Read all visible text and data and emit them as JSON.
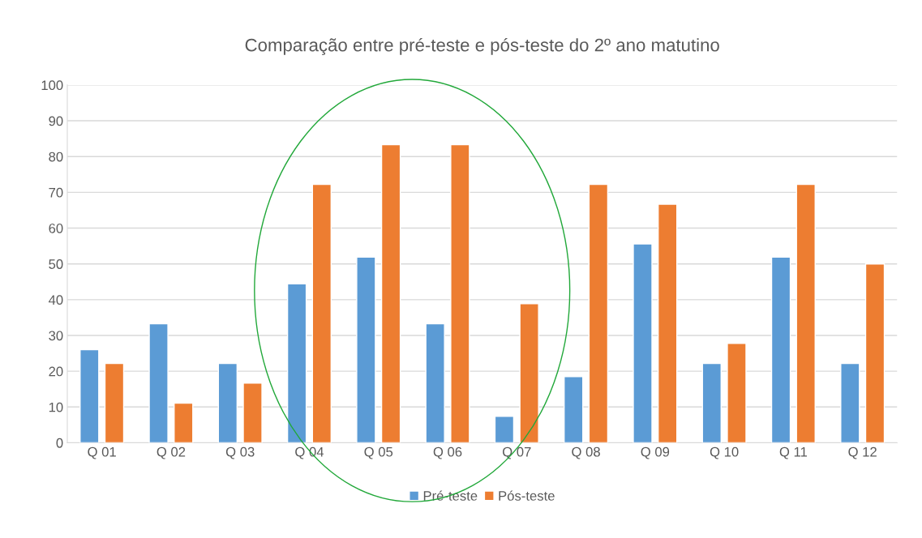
{
  "chart_data": {
    "type": "bar",
    "title": "Comparação entre pré-teste e pós-teste do 2º ano matutino",
    "categories": [
      "Q 01",
      "Q 02",
      "Q 03",
      "Q 04",
      "Q 05",
      "Q 06",
      "Q 07",
      "Q 08",
      "Q 09",
      "Q 10",
      "Q 11",
      "Q 12"
    ],
    "series": [
      {
        "name": "Pré-teste",
        "color": "#5b9bd5",
        "values": [
          26,
          33.3,
          22.2,
          44.4,
          51.9,
          33.3,
          7.4,
          18.5,
          55.6,
          22.2,
          51.9,
          22.2
        ]
      },
      {
        "name": "Pós-teste",
        "color": "#ed7d31",
        "values": [
          22.2,
          11.1,
          16.7,
          72.2,
          83.3,
          83.3,
          38.9,
          72.2,
          66.7,
          27.8,
          72.2,
          50
        ]
      }
    ],
    "ylim": [
      0,
      100
    ],
    "yticks": [
      0,
      10,
      20,
      30,
      40,
      50,
      60,
      70,
      80,
      90,
      100
    ],
    "grid": "y",
    "legend": "bottom"
  }
}
